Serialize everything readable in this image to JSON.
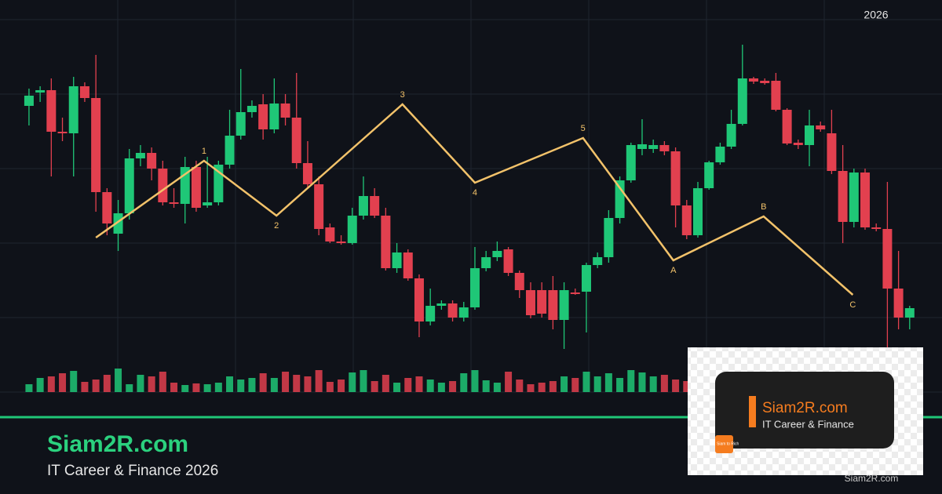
{
  "chart_data": {
    "type": "candlestick",
    "year_label": "2026",
    "up_color": "#1fc777",
    "down_color": "#e2404f",
    "wave_color": "#f2c26a",
    "xlim": [
      -2.6,
      81.9
    ],
    "ylim": [
      0,
      500
    ],
    "open": [
      365,
      382,
      385,
      332,
      330,
      390,
      375,
      255,
      202,
      228,
      298,
      305,
      285,
      242,
      240,
      287,
      238,
      242,
      290,
      327,
      357,
      367,
      335,
      368,
      350,
      292,
      265,
      210,
      192,
      190,
      225,
      250,
      225,
      158,
      178,
      145,
      90,
      110,
      113,
      95,
      108,
      158,
      172,
      182,
      152,
      130,
      130,
      130,
      92,
      127,
      128,
      162,
      172,
      222,
      270,
      310,
      310,
      315,
      307,
      238,
      200,
      260,
      293,
      313,
      342,
      400,
      397,
      397,
      360,
      318,
      315,
      340,
      330,
      282,
      217,
      280,
      210,
      208,
      132,
      95
    ],
    "high": [
      387,
      390,
      400,
      350,
      402,
      395,
      430,
      260,
      245,
      310,
      315,
      312,
      295,
      260,
      300,
      295,
      300,
      295,
      360,
      412,
      372,
      380,
      400,
      380,
      407,
      320,
      275,
      215,
      200,
      235,
      275,
      260,
      235,
      190,
      182,
      150,
      132,
      117,
      117,
      115,
      185,
      180,
      192,
      185,
      155,
      140,
      140,
      148,
      140,
      132,
      165,
      178,
      232,
      275,
      318,
      348,
      322,
      320,
      312,
      245,
      268,
      295,
      318,
      360,
      443,
      402,
      400,
      407,
      362,
      322,
      360,
      345,
      360,
      315,
      285,
      285,
      215,
      268,
      180,
      110
    ],
    "low": [
      340,
      370,
      275,
      320,
      275,
      370,
      230,
      200,
      180,
      220,
      288,
      270,
      238,
      235,
      215,
      230,
      235,
      238,
      285,
      322,
      350,
      322,
      330,
      340,
      285,
      260,
      200,
      190,
      188,
      188,
      220,
      222,
      155,
      152,
      142,
      70,
      85,
      105,
      90,
      90,
      105,
      154,
      167,
      148,
      120,
      94,
      95,
      80,
      55,
      124,
      76,
      158,
      165,
      215,
      267,
      302,
      305,
      302,
      210,
      195,
      197,
      258,
      290,
      310,
      340,
      393,
      392,
      358,
      315,
      310,
      288,
      332,
      278,
      190,
      210,
      207,
      205,
      55,
      80,
      80
    ],
    "close": [
      378,
      385,
      332,
      330,
      390,
      375,
      255,
      215,
      228,
      298,
      305,
      285,
      242,
      240,
      287,
      235,
      242,
      290,
      327,
      357,
      365,
      335,
      368,
      350,
      292,
      265,
      208,
      192,
      190,
      225,
      250,
      225,
      158,
      178,
      145,
      90,
      110,
      113,
      95,
      108,
      158,
      172,
      180,
      152,
      130,
      98,
      100,
      92,
      130,
      125,
      162,
      172,
      222,
      270,
      315,
      316,
      315,
      307,
      238,
      200,
      260,
      293,
      313,
      342,
      400,
      396,
      394,
      360,
      317,
      315,
      340,
      335,
      282,
      217,
      280,
      210,
      208,
      132,
      95,
      107
    ],
    "volume": [
      10,
      18,
      20,
      24,
      27,
      13,
      16,
      22,
      30,
      10,
      22,
      20,
      26,
      12,
      9,
      11,
      10,
      12,
      20,
      16,
      18,
      24,
      18,
      26,
      22,
      20,
      28,
      13,
      16,
      25,
      28,
      14,
      22,
      12,
      18,
      20,
      16,
      12,
      14,
      24,
      28,
      15,
      12,
      26,
      16,
      10,
      12,
      14,
      20,
      18,
      26,
      20,
      24,
      18,
      28,
      25,
      20,
      22,
      16,
      14,
      20,
      26,
      18,
      12,
      24,
      20,
      22,
      16,
      10,
      18,
      14,
      22,
      16,
      12,
      20,
      10,
      14,
      18,
      12,
      16
    ],
    "wave": {
      "x": [
        6.0,
        15.7,
        22.2,
        33.5,
        40.0,
        49.7,
        57.8,
        65.9,
        73.9
      ],
      "values": [
        197,
        295,
        225,
        367,
        267,
        324,
        168,
        224,
        124
      ],
      "labels": [
        null,
        "1",
        "2",
        "3",
        "4",
        "5",
        "A",
        "B",
        "C"
      ]
    }
  },
  "footer": {
    "title": "Siam2R.com",
    "subtitle": "IT Career & Finance 2026"
  },
  "overlay": {
    "brand": "Siam2R.com",
    "tagline": "IT Career & Finance",
    "logo": "Siam to Rich",
    "watermark": "Siam2R.com"
  }
}
